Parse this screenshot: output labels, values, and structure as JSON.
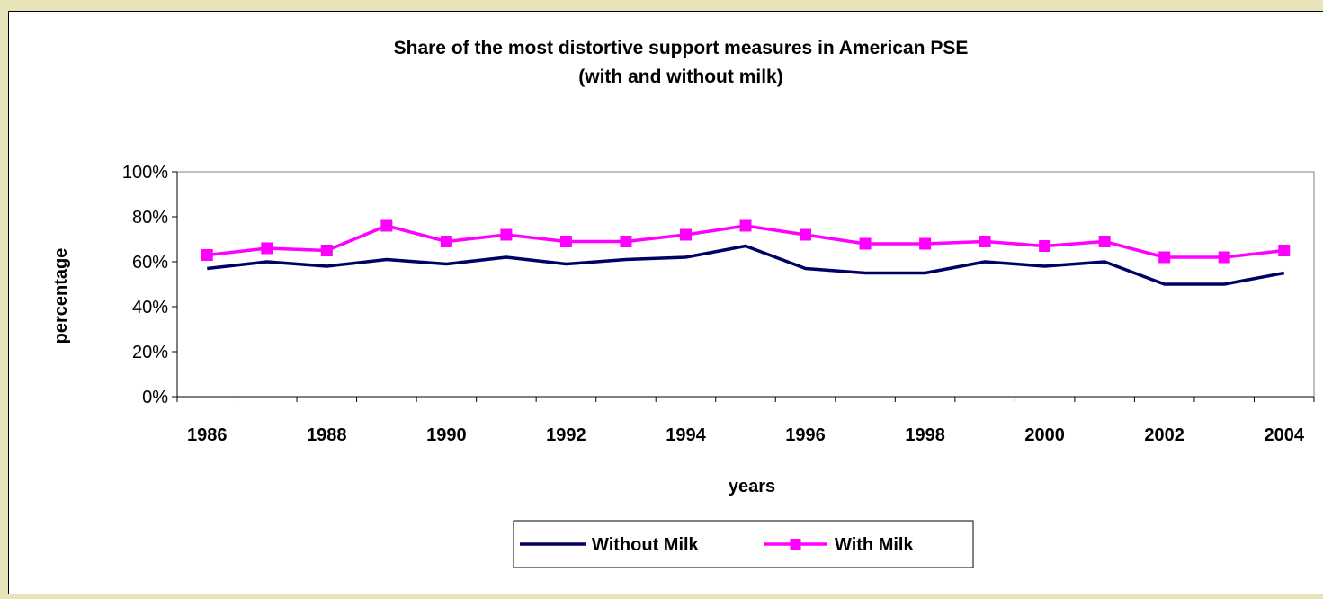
{
  "colors": {
    "page_background": "#e8e3b8",
    "plot_background": "#ffffff",
    "without_milk": "#000066",
    "with_milk": "#ff00ff"
  },
  "chart_data": {
    "type": "line",
    "title_line1": "Share of the most distortive support measures in American PSE",
    "title_line2": "(with and without milk)",
    "xlabel": "years",
    "ylabel": "percentage",
    "ylim": [
      0,
      1
    ],
    "yticks": [
      "0%",
      "20%",
      "40%",
      "60%",
      "80%",
      "100%"
    ],
    "x": [
      1986,
      1987,
      1988,
      1989,
      1990,
      1991,
      1992,
      1993,
      1994,
      1995,
      1996,
      1997,
      1998,
      1999,
      2000,
      2001,
      2002,
      2003,
      2004
    ],
    "xtick_labels": [
      "1986",
      "1988",
      "1990",
      "1992",
      "1994",
      "1996",
      "1998",
      "2000",
      "2002",
      "2004"
    ],
    "grid": false,
    "legend_position": "bottom-center",
    "series": [
      {
        "name": "Without Milk",
        "marker": "none",
        "values": [
          0.57,
          0.6,
          0.58,
          0.61,
          0.59,
          0.62,
          0.59,
          0.61,
          0.62,
          0.67,
          0.57,
          0.55,
          0.55,
          0.6,
          0.58,
          0.6,
          0.5,
          0.5,
          0.55
        ]
      },
      {
        "name": "With Milk",
        "marker": "square",
        "values": [
          0.63,
          0.66,
          0.65,
          0.76,
          0.69,
          0.72,
          0.69,
          0.69,
          0.72,
          0.76,
          0.72,
          0.68,
          0.68,
          0.69,
          0.67,
          0.69,
          0.62,
          0.62,
          0.65
        ]
      }
    ]
  }
}
